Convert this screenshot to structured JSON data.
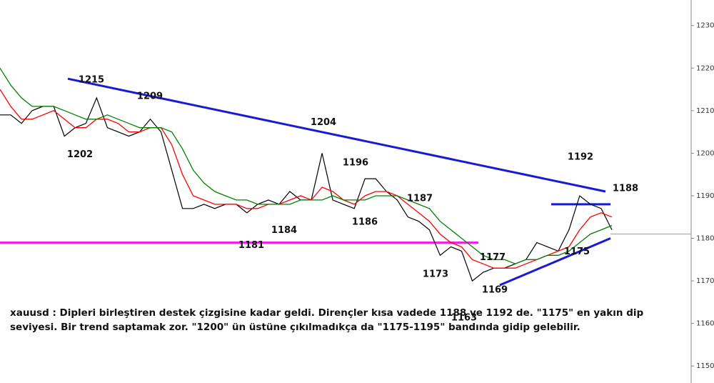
{
  "chart_data": {
    "type": "line",
    "categories": [
      null,
      null,
      null,
      null,
      null,
      null,
      null,
      null,
      null,
      null,
      null,
      null,
      null,
      null,
      null,
      null,
      null,
      null,
      null,
      null,
      null,
      null,
      null,
      null,
      null,
      null,
      null,
      null,
      null,
      null,
      null,
      null,
      null,
      null,
      null,
      null,
      null,
      null,
      null,
      null,
      null,
      null,
      null,
      null,
      null,
      null,
      null,
      null,
      null,
      null,
      null,
      null,
      null,
      null,
      null,
      null,
      null,
      null
    ],
    "series": [
      {
        "color": "#000000",
        "values": [
          1209,
          1209,
          1207,
          1210,
          1211,
          1211,
          1204,
          1206,
          1207,
          1213,
          1206,
          1205,
          1204,
          1205,
          1208,
          1205,
          1196,
          1187,
          1187,
          1188,
          1187,
          1188,
          1188,
          1186,
          1188,
          1189,
          1188,
          1191,
          1189,
          1189,
          1200,
          1189,
          1188,
          1187,
          1194,
          1194,
          1191,
          1189,
          1185,
          1184,
          1182,
          1176,
          1178,
          1177,
          1170,
          1172,
          1173,
          1173,
          1174,
          1175,
          1179,
          1178,
          1177,
          1182,
          1190,
          1188,
          1187,
          1182
        ]
      },
      {
        "color": "#ff0000",
        "values": [
          1215,
          1211,
          1208,
          1208,
          1209,
          1210,
          1208,
          1206,
          1206,
          1208,
          1208,
          1207,
          1205,
          1205,
          1206,
          1206,
          1202,
          1195,
          1190,
          1189,
          1188,
          1188,
          1188,
          1187,
          1187,
          1188,
          1188,
          1189,
          1190,
          1189,
          1192,
          1191,
          1189,
          1188,
          1190,
          1191,
          1191,
          1190,
          1188,
          1186,
          1184,
          1181,
          1179,
          1178,
          1175,
          1174,
          1173,
          1173,
          1173,
          1174,
          1175,
          1176,
          1177,
          1178,
          1182,
          1185,
          1186,
          1185
        ]
      },
      {
        "color": "#008000",
        "values": [
          1220,
          1216,
          1213,
          1211,
          1211,
          1211,
          1210,
          1209,
          1208,
          1208,
          1209,
          1208,
          1207,
          1206,
          1206,
          1206,
          1205,
          1201,
          1196,
          1193,
          1191,
          1190,
          1189,
          1189,
          1188,
          1188,
          1188,
          1188,
          1189,
          1189,
          1189,
          1190,
          1189,
          1189,
          1189,
          1190,
          1190,
          1190,
          1189,
          1188,
          1187,
          1184,
          1182,
          1180,
          1178,
          1176,
          1175,
          1175,
          1174,
          1175,
          1175,
          1176,
          1176,
          1177,
          1179,
          1181,
          1182,
          1183
        ]
      }
    ],
    "ylim": [
      1146,
      1236
    ],
    "yticks": [
      {
        "value": 1150,
        "label": "1150,"
      },
      {
        "value": 1160,
        "label": "1160,"
      },
      {
        "value": 1170,
        "label": "1170,"
      },
      {
        "value": 1180,
        "label": "1180,"
      },
      {
        "value": 1190,
        "label": "1190,"
      },
      {
        "value": 1200,
        "label": "1200,"
      },
      {
        "value": 1210,
        "label": "1210,"
      },
      {
        "value": 1220,
        "label": "1220,"
      },
      {
        "value": 1230,
        "label": "1230,"
      }
    ],
    "annotations": [
      1215,
      1209,
      1202,
      1204,
      1196,
      1187,
      1184,
      1186,
      1181,
      1177,
      1173,
      1163,
      1169,
      1175,
      1192,
      1188
    ],
    "lines": [
      {
        "color": "#1a1ad6",
        "values": [
          1217.5,
          1191
        ]
      },
      {
        "color": "#1a1ad6",
        "values": [
          1188,
          1188
        ]
      },
      {
        "color": "#1a1ad6",
        "values": [
          1169,
          1180
        ]
      },
      {
        "color": "#ee22ee",
        "values": [
          1179,
          1179
        ]
      },
      {
        "color": "#9999cc",
        "values": [
          1181,
          1181
        ]
      }
    ],
    "caption": [
      "xauusd : Dipleri birleştiren destek çizgisine kadar geldi. Dirençler kısa vadede 1188 ve 1192 de. \"1175\" en yakın dip",
      "seviyesi. Bir trend saptamak zor. \"1200\" ün üstüne çıkılmadıkça da \"1175-1195\" bandında gidip gelebilir."
    ]
  }
}
